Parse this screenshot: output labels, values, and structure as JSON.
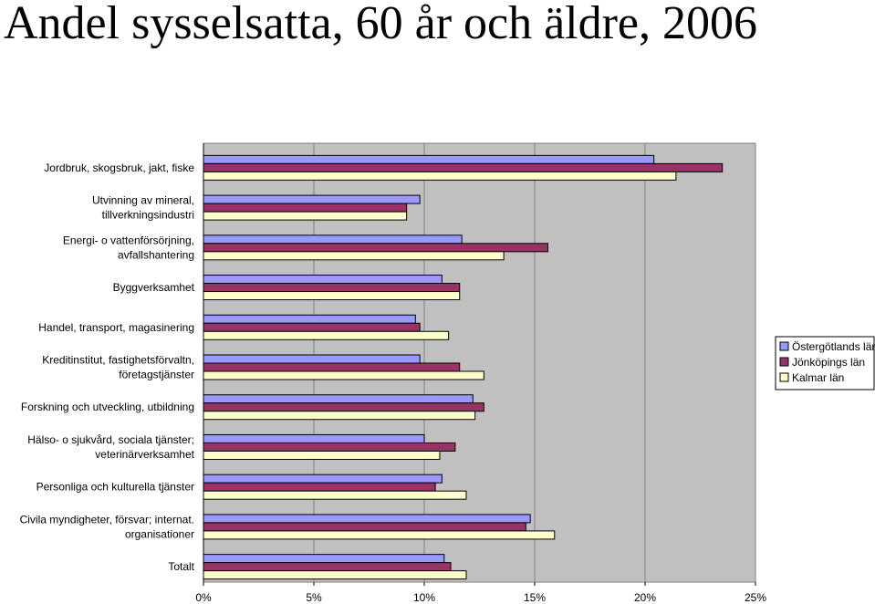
{
  "chart_data": {
    "type": "bar",
    "orientation": "horizontal",
    "title": "Andel sysselsatta, 60 år och äldre, 2006",
    "categories": [
      [
        "Jordbruk, skogsbruk, jakt, fiske"
      ],
      [
        "Utvinning av mineral,",
        "tillverkningsindustri"
      ],
      [
        "Energi- o vattenförsörjning,",
        "avfallshantering"
      ],
      [
        "Byggverksamhet"
      ],
      [
        "Handel, transport, magasinering"
      ],
      [
        "Kreditinstitut, fastighetsförvaltn,",
        "företagstjänster"
      ],
      [
        "Forskning och utveckling, utbildning"
      ],
      [
        "Hälso- o sjukvård, sociala tjänster;",
        "veterinärverksamhet"
      ],
      [
        "Personliga och kulturella tjänster"
      ],
      [
        "Civila myndigheter, försvar; internat.",
        "organisationer"
      ],
      [
        "Totalt"
      ]
    ],
    "series": [
      {
        "name": "Östergötlands län",
        "color": "#9999ff",
        "values": [
          20.4,
          9.8,
          11.7,
          10.8,
          9.6,
          9.8,
          12.2,
          10.0,
          10.8,
          14.8,
          10.9
        ]
      },
      {
        "name": "Jönköpings län",
        "color": "#993366",
        "values": [
          23.5,
          9.2,
          15.6,
          11.6,
          9.8,
          11.6,
          12.7,
          11.4,
          10.5,
          14.6,
          11.2
        ]
      },
      {
        "name": "Kalmar län",
        "color": "#ffffcc",
        "values": [
          21.4,
          9.2,
          13.6,
          11.6,
          11.1,
          12.7,
          12.3,
          10.7,
          11.9,
          15.9,
          11.9
        ]
      }
    ],
    "xlim": [
      0,
      25
    ],
    "xticks": [
      "0%",
      "5%",
      "10%",
      "15%",
      "20%",
      "25%"
    ],
    "xlabel": "",
    "ylabel": "",
    "grid": true,
    "plot_background": "#c0c0c0",
    "legend_position": "right"
  }
}
